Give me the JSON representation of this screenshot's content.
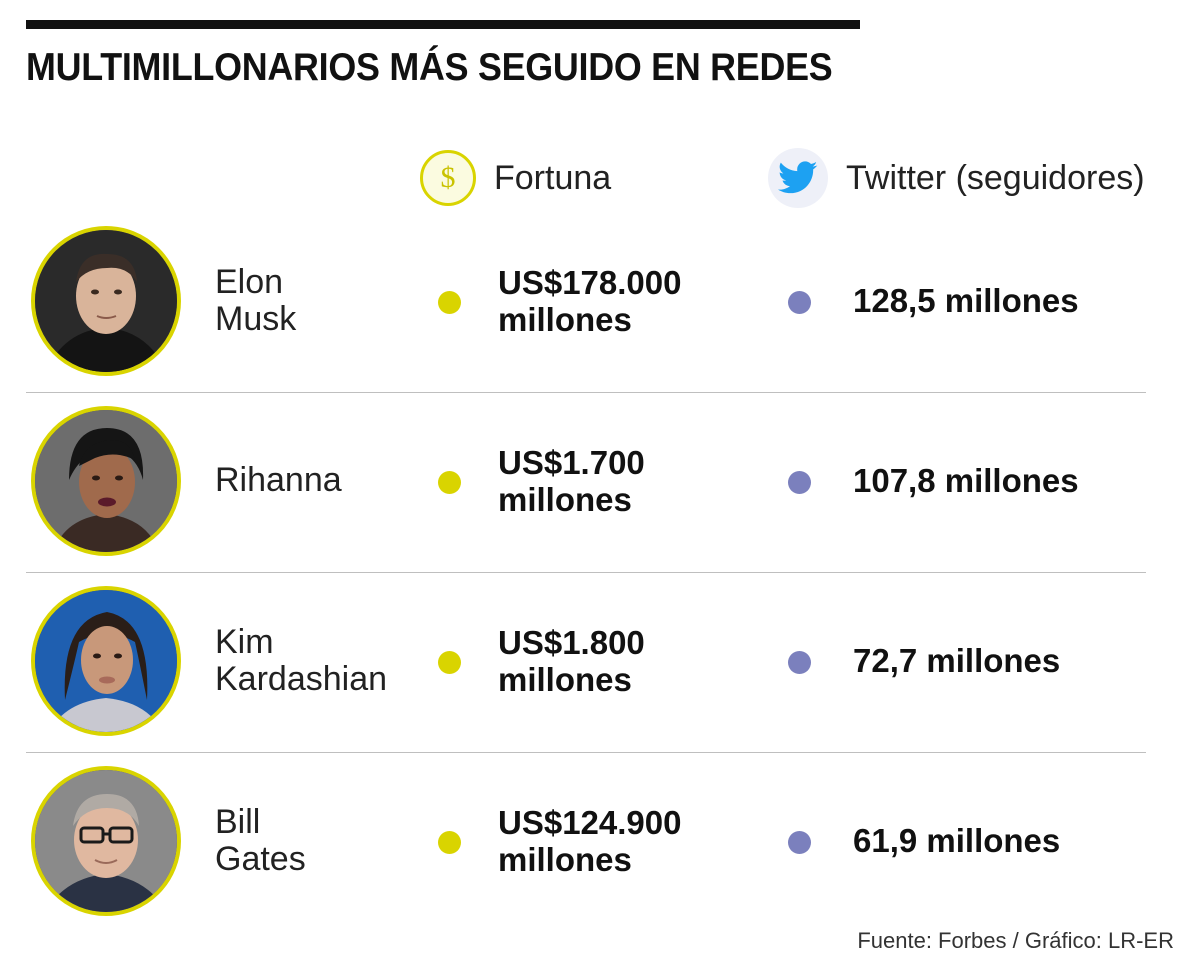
{
  "title": "MULTIMILLONARIOS MÁS SEGUIDO EN REDES",
  "columns": {
    "fortune_label": "Fortuna",
    "fortune_icon": "dollar-icon",
    "twitter_label": "Twitter (seguidores)",
    "twitter_icon": "twitter-bird-icon"
  },
  "colors": {
    "accent_yellow": "#d9d400",
    "accent_twitter": "#7b80bd"
  },
  "people": [
    {
      "name_line1": "Elon",
      "name_line2": "Musk",
      "fortune_line1": "US$178.000",
      "fortune_line2": "millones",
      "twitter": "128,5 millones",
      "avatar": "elon-musk-photo"
    },
    {
      "name_line1": "Rihanna",
      "name_line2": "",
      "fortune_line1": "US$1.700",
      "fortune_line2": "millones",
      "twitter": "107,8 millones",
      "avatar": "rihanna-photo"
    },
    {
      "name_line1": "Kim",
      "name_line2": "Kardashian",
      "fortune_line1": "US$1.800",
      "fortune_line2": "millones",
      "twitter": "72,7 millones",
      "avatar": "kim-kardashian-photo"
    },
    {
      "name_line1": "Bill",
      "name_line2": "Gates",
      "fortune_line1": "US$124.900",
      "fortune_line2": "millones",
      "twitter": "61,9 millones",
      "avatar": "bill-gates-photo"
    }
  ],
  "source": "Fuente: Forbes / Gráfico: LR-ER"
}
